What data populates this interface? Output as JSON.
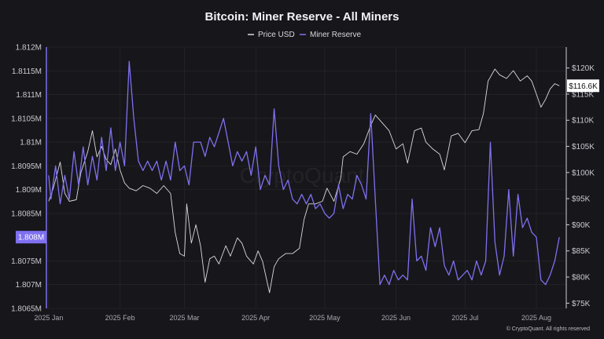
{
  "colors": {
    "background": "#17161a",
    "price": "#d9d9de",
    "reserve": "#7e70f0",
    "grid": "#2a2a31",
    "badge_left_bg": "#7e70f0",
    "badge_right_bg": "#ffffff"
  },
  "watermark": "CryptoQuant",
  "copyright": "© CryptoQuant. All rights reserved",
  "chart_data": {
    "type": "line",
    "title": "Bitcoin: Miner Reserve - All Miners",
    "legend": {
      "position": "top-center"
    },
    "grid": true,
    "x_range": [
      "2024-12-31",
      "2025-08-14"
    ],
    "x_ticks": [
      {
        "date": "2025-01-01",
        "label": "2025 Jan"
      },
      {
        "date": "2025-02-01",
        "label": "2025 Feb"
      },
      {
        "date": "2025-03-01",
        "label": "2025 Mar"
      },
      {
        "date": "2025-04-01",
        "label": "2025 Apr"
      },
      {
        "date": "2025-05-01",
        "label": "2025 May"
      },
      {
        "date": "2025-06-01",
        "label": "2025 Jun"
      },
      {
        "date": "2025-07-01",
        "label": "2025 Jul"
      },
      {
        "date": "2025-08-01",
        "label": "2025 Aug"
      }
    ],
    "left_axis": {
      "ylim": [
        1.8065,
        1.812
      ],
      "ticks": [
        {
          "v": 1.812,
          "label": "1.812M"
        },
        {
          "v": 1.8115,
          "label": "1.8115M"
        },
        {
          "v": 1.811,
          "label": "1.811M"
        },
        {
          "v": 1.8105,
          "label": "1.8105M"
        },
        {
          "v": 1.81,
          "label": "1.81M"
        },
        {
          "v": 1.8095,
          "label": "1.8095M"
        },
        {
          "v": 1.809,
          "label": "1.809M"
        },
        {
          "v": 1.8085,
          "label": "1.8085M"
        },
        {
          "v": 1.8075,
          "label": "1.8075M"
        },
        {
          "v": 1.807,
          "label": "1.807M"
        },
        {
          "v": 1.8065,
          "label": "1.8065M"
        }
      ],
      "current": {
        "v": 1.808,
        "label": "1.808M"
      }
    },
    "right_axis": {
      "ylim": [
        74000,
        124000
      ],
      "ticks": [
        {
          "v": 120000,
          "label": "$120K"
        },
        {
          "v": 115000,
          "label": "$115K"
        },
        {
          "v": 110000,
          "label": "$110K"
        },
        {
          "v": 105000,
          "label": "$105K"
        },
        {
          "v": 100000,
          "label": "$100K"
        },
        {
          "v": 95000,
          "label": "$95K"
        },
        {
          "v": 90000,
          "label": "$90K"
        },
        {
          "v": 85000,
          "label": "$85K"
        },
        {
          "v": 80000,
          "label": "$80K"
        },
        {
          "v": 75000,
          "label": "$75K"
        }
      ],
      "current": {
        "v": 116600,
        "label": "$116.6K"
      }
    },
    "series": [
      {
        "name": "Price USD",
        "axis": "right",
        "points": [
          [
            "2025-01-01",
            94500
          ],
          [
            "2025-01-03",
            97000
          ],
          [
            "2025-01-06",
            102000
          ],
          [
            "2025-01-08",
            96000
          ],
          [
            "2025-01-10",
            94500
          ],
          [
            "2025-01-13",
            94800
          ],
          [
            "2025-01-15",
            100000
          ],
          [
            "2025-01-18",
            104000
          ],
          [
            "2025-01-20",
            108000
          ],
          [
            "2025-01-22",
            103000
          ],
          [
            "2025-01-24",
            105000
          ],
          [
            "2025-01-26",
            102500
          ],
          [
            "2025-01-28",
            101500
          ],
          [
            "2025-01-30",
            104500
          ],
          [
            "2025-02-01",
            100500
          ],
          [
            "2025-02-03",
            98000
          ],
          [
            "2025-02-05",
            97000
          ],
          [
            "2025-02-08",
            96500
          ],
          [
            "2025-02-11",
            97500
          ],
          [
            "2025-02-14",
            97000
          ],
          [
            "2025-02-17",
            96000
          ],
          [
            "2025-02-20",
            97500
          ],
          [
            "2025-02-23",
            96000
          ],
          [
            "2025-02-25",
            88500
          ],
          [
            "2025-02-27",
            84500
          ],
          [
            "2025-03-01",
            84000
          ],
          [
            "2025-03-02",
            94000
          ],
          [
            "2025-03-04",
            86500
          ],
          [
            "2025-03-06",
            90000
          ],
          [
            "2025-03-08",
            86000
          ],
          [
            "2025-03-10",
            79000
          ],
          [
            "2025-03-12",
            83500
          ],
          [
            "2025-03-14",
            84000
          ],
          [
            "2025-03-16",
            82500
          ],
          [
            "2025-03-19",
            86000
          ],
          [
            "2025-03-21",
            84000
          ],
          [
            "2025-03-24",
            87500
          ],
          [
            "2025-03-26",
            86500
          ],
          [
            "2025-03-28",
            84000
          ],
          [
            "2025-03-31",
            82500
          ],
          [
            "2025-04-02",
            85000
          ],
          [
            "2025-04-04",
            83000
          ],
          [
            "2025-04-07",
            77000
          ],
          [
            "2025-04-09",
            82000
          ],
          [
            "2025-04-11",
            83500
          ],
          [
            "2025-04-14",
            84500
          ],
          [
            "2025-04-17",
            84500
          ],
          [
            "2025-04-20",
            85500
          ],
          [
            "2025-04-22",
            91000
          ],
          [
            "2025-04-24",
            94000
          ],
          [
            "2025-04-27",
            94000
          ],
          [
            "2025-04-30",
            94500
          ],
          [
            "2025-05-02",
            97000
          ],
          [
            "2025-05-05",
            94500
          ],
          [
            "2025-05-08",
            99000
          ],
          [
            "2025-05-09",
            103000
          ],
          [
            "2025-05-12",
            104000
          ],
          [
            "2025-05-15",
            103500
          ],
          [
            "2025-05-18",
            105500
          ],
          [
            "2025-05-21",
            109000
          ],
          [
            "2025-05-23",
            111000
          ],
          [
            "2025-05-26",
            109500
          ],
          [
            "2025-05-29",
            108000
          ],
          [
            "2025-06-01",
            104500
          ],
          [
            "2025-06-04",
            105500
          ],
          [
            "2025-06-06",
            101800
          ],
          [
            "2025-06-09",
            108000
          ],
          [
            "2025-06-12",
            108500
          ],
          [
            "2025-06-14",
            105800
          ],
          [
            "2025-06-17",
            104500
          ],
          [
            "2025-06-20",
            103500
          ],
          [
            "2025-06-22",
            100500
          ],
          [
            "2025-06-25",
            107000
          ],
          [
            "2025-06-28",
            107500
          ],
          [
            "2025-07-01",
            105700
          ],
          [
            "2025-07-04",
            108000
          ],
          [
            "2025-07-07",
            108200
          ],
          [
            "2025-07-09",
            111300
          ],
          [
            "2025-07-11",
            117500
          ],
          [
            "2025-07-14",
            119800
          ],
          [
            "2025-07-16",
            118700
          ],
          [
            "2025-07-19",
            118000
          ],
          [
            "2025-07-22",
            119500
          ],
          [
            "2025-07-25",
            117500
          ],
          [
            "2025-07-28",
            118500
          ],
          [
            "2025-07-30",
            117500
          ],
          [
            "2025-08-01",
            115000
          ],
          [
            "2025-08-03",
            112500
          ],
          [
            "2025-08-05",
            114000
          ],
          [
            "2025-08-07",
            116000
          ],
          [
            "2025-08-09",
            117000
          ],
          [
            "2025-08-11",
            116600
          ]
        ]
      },
      {
        "name": "Miner Reserve",
        "axis": "left",
        "points": [
          [
            "2025-01-01",
            1.8093
          ],
          [
            "2025-01-02",
            1.8088
          ],
          [
            "2025-01-04",
            1.8095
          ],
          [
            "2025-01-06",
            1.8087
          ],
          [
            "2025-01-08",
            1.8093
          ],
          [
            "2025-01-10",
            1.8088
          ],
          [
            "2025-01-12",
            1.8098
          ],
          [
            "2025-01-14",
            1.8091
          ],
          [
            "2025-01-16",
            1.8099
          ],
          [
            "2025-01-18",
            1.8091
          ],
          [
            "2025-01-20",
            1.8097
          ],
          [
            "2025-01-22",
            1.8092
          ],
          [
            "2025-01-24",
            1.8101
          ],
          [
            "2025-01-26",
            1.8094
          ],
          [
            "2025-01-28",
            1.8103
          ],
          [
            "2025-01-30",
            1.8094
          ],
          [
            "2025-02-01",
            1.81
          ],
          [
            "2025-02-03",
            1.8095
          ],
          [
            "2025-02-05",
            1.8117
          ],
          [
            "2025-02-07",
            1.8105
          ],
          [
            "2025-02-09",
            1.8096
          ],
          [
            "2025-02-11",
            1.8094
          ],
          [
            "2025-02-13",
            1.8096
          ],
          [
            "2025-02-15",
            1.8094
          ],
          [
            "2025-02-17",
            1.8096
          ],
          [
            "2025-02-19",
            1.8092
          ],
          [
            "2025-02-21",
            1.8096
          ],
          [
            "2025-02-23",
            1.8092
          ],
          [
            "2025-02-25",
            1.81
          ],
          [
            "2025-02-27",
            1.8094
          ],
          [
            "2025-03-01",
            1.8095
          ],
          [
            "2025-03-03",
            1.8091
          ],
          [
            "2025-03-05",
            1.81
          ],
          [
            "2025-03-08",
            1.81
          ],
          [
            "2025-03-10",
            1.8097
          ],
          [
            "2025-03-12",
            1.8101
          ],
          [
            "2025-03-14",
            1.8099
          ],
          [
            "2025-03-16",
            1.8102
          ],
          [
            "2025-03-18",
            1.8105
          ],
          [
            "2025-03-20",
            1.81
          ],
          [
            "2025-03-22",
            1.8095
          ],
          [
            "2025-03-24",
            1.8098
          ],
          [
            "2025-03-26",
            1.8096
          ],
          [
            "2025-03-28",
            1.8098
          ],
          [
            "2025-03-30",
            1.8093
          ],
          [
            "2025-04-01",
            1.8099
          ],
          [
            "2025-04-03",
            1.809
          ],
          [
            "2025-04-05",
            1.8093
          ],
          [
            "2025-04-07",
            1.8091
          ],
          [
            "2025-04-09",
            1.8107
          ],
          [
            "2025-04-11",
            1.8095
          ],
          [
            "2025-04-13",
            1.809
          ],
          [
            "2025-04-15",
            1.8092
          ],
          [
            "2025-04-17",
            1.8088
          ],
          [
            "2025-04-19",
            1.8087
          ],
          [
            "2025-04-21",
            1.8089
          ],
          [
            "2025-04-23",
            1.8087
          ],
          [
            "2025-04-25",
            1.8089
          ],
          [
            "2025-04-27",
            1.8086
          ],
          [
            "2025-04-29",
            1.8087
          ],
          [
            "2025-05-01",
            1.8085
          ],
          [
            "2025-05-03",
            1.8084
          ],
          [
            "2025-05-05",
            1.8085
          ],
          [
            "2025-05-07",
            1.8091
          ],
          [
            "2025-05-09",
            1.8086
          ],
          [
            "2025-05-11",
            1.8089
          ],
          [
            "2025-05-13",
            1.8088
          ],
          [
            "2025-05-15",
            1.8093
          ],
          [
            "2025-05-17",
            1.8091
          ],
          [
            "2025-05-19",
            1.8088
          ],
          [
            "2025-05-21",
            1.8106
          ],
          [
            "2025-05-23",
            1.8088
          ],
          [
            "2025-05-25",
            1.807
          ],
          [
            "2025-05-27",
            1.8072
          ],
          [
            "2025-05-29",
            1.807
          ],
          [
            "2025-05-31",
            1.8073
          ],
          [
            "2025-06-02",
            1.8071
          ],
          [
            "2025-06-04",
            1.8072
          ],
          [
            "2025-06-06",
            1.8071
          ],
          [
            "2025-06-08",
            1.8088
          ],
          [
            "2025-06-10",
            1.8075
          ],
          [
            "2025-06-12",
            1.8076
          ],
          [
            "2025-06-14",
            1.8073
          ],
          [
            "2025-06-16",
            1.8082
          ],
          [
            "2025-06-18",
            1.8078
          ],
          [
            "2025-06-20",
            1.8082
          ],
          [
            "2025-06-22",
            1.8074
          ],
          [
            "2025-06-24",
            1.8072
          ],
          [
            "2025-06-26",
            1.8075
          ],
          [
            "2025-06-28",
            1.8071
          ],
          [
            "2025-06-30",
            1.8072
          ],
          [
            "2025-07-02",
            1.8073
          ],
          [
            "2025-07-04",
            1.8071
          ],
          [
            "2025-07-06",
            1.8075
          ],
          [
            "2025-07-08",
            1.8072
          ],
          [
            "2025-07-10",
            1.8075
          ],
          [
            "2025-07-12",
            1.81
          ],
          [
            "2025-07-14",
            1.8079
          ],
          [
            "2025-07-16",
            1.8072
          ],
          [
            "2025-07-18",
            1.8076
          ],
          [
            "2025-07-20",
            1.809
          ],
          [
            "2025-07-22",
            1.8076
          ],
          [
            "2025-07-24",
            1.8089
          ],
          [
            "2025-07-26",
            1.8082
          ],
          [
            "2025-07-28",
            1.8084
          ],
          [
            "2025-07-30",
            1.8081
          ],
          [
            "2025-08-01",
            1.808
          ],
          [
            "2025-08-03",
            1.8071
          ],
          [
            "2025-08-05",
            1.807
          ],
          [
            "2025-08-07",
            1.8072
          ],
          [
            "2025-08-09",
            1.8075
          ],
          [
            "2025-08-11",
            1.808
          ]
        ]
      }
    ]
  }
}
